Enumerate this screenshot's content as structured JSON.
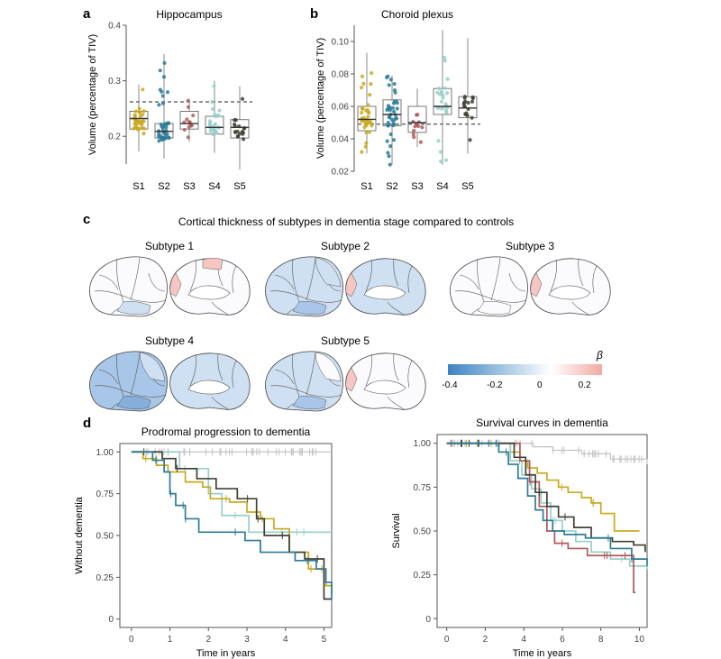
{
  "panels": {
    "a": {
      "letter": "a"
    },
    "b": {
      "letter": "b"
    },
    "c": {
      "letter": "c",
      "title": "Cortical thickness of subtypes in dementia stage compared to controls",
      "subtypes": [
        "Subtype 1",
        "Subtype 2",
        "Subtype 3",
        "Subtype 4",
        "Subtype 5"
      ],
      "colorbar": {
        "label": "β",
        "ticks": [
          "-0.4",
          "-0.2",
          "0",
          "0.2"
        ],
        "colors": [
          "#3c84c2",
          "#ffffff",
          "#f2a9a5"
        ]
      }
    },
    "d": {
      "letter": "d"
    }
  },
  "colors": {
    "S1": "#c9a920",
    "S2": "#2c7b98",
    "S3": "#b05a5a",
    "S4": "#99cfcb",
    "S5": "#404037",
    "controls": "#c4c4c4"
  },
  "chart_data": [
    {
      "id": "hippocampus",
      "type": "boxplot",
      "title": "Hippocampus",
      "ylabel": "Volume (percentage of TIV)",
      "categories": [
        "S1",
        "S2",
        "S3",
        "S4",
        "S5"
      ],
      "yticks": [
        "0.2",
        "0.3",
        "0.4"
      ],
      "ylim": [
        0.15,
        0.4
      ],
      "reference_line": 0.262,
      "boxes": [
        {
          "q1": 0.213,
          "median": 0.232,
          "q3": 0.245,
          "min": 0.173,
          "max": 0.293
        },
        {
          "q1": 0.197,
          "median": 0.209,
          "q3": 0.223,
          "min": 0.16,
          "max": 0.348
        },
        {
          "q1": 0.213,
          "median": 0.223,
          "q3": 0.245,
          "min": 0.19,
          "max": 0.268
        },
        {
          "q1": 0.204,
          "median": 0.216,
          "q3": 0.236,
          "min": 0.17,
          "max": 0.3
        },
        {
          "q1": 0.197,
          "median": 0.216,
          "q3": 0.23,
          "min": 0.14,
          "max": 0.29
        }
      ]
    },
    {
      "id": "choroid",
      "type": "boxplot",
      "title": "Choroid plexus",
      "ylabel": "Volume (percentage of TIV)",
      "categories": [
        "S1",
        "S2",
        "S3",
        "S4",
        "S5"
      ],
      "yticks": [
        "0.02",
        "0.04",
        "0.06",
        "0.08",
        "0.10"
      ],
      "ylim": [
        0.02,
        0.11
      ],
      "reference_line": 0.049,
      "boxes": [
        {
          "q1": 0.045,
          "median": 0.052,
          "q3": 0.06,
          "min": 0.031,
          "max": 0.093
        },
        {
          "q1": 0.048,
          "median": 0.055,
          "q3": 0.064,
          "min": 0.024,
          "max": 0.079
        },
        {
          "q1": 0.044,
          "median": 0.05,
          "q3": 0.06,
          "min": 0.035,
          "max": 0.071
        },
        {
          "q1": 0.055,
          "median": 0.06,
          "q3": 0.071,
          "min": 0.024,
          "max": 0.107
        },
        {
          "q1": 0.053,
          "median": 0.059,
          "q3": 0.066,
          "min": 0.031,
          "max": 0.102
        }
      ]
    },
    {
      "id": "prodromal",
      "type": "line",
      "title": "Prodromal progression to dementia",
      "xlabel": "Time in years",
      "ylabel": "Without dementia",
      "xticks": [
        "0",
        "1",
        "2",
        "3",
        "4",
        "5"
      ],
      "yticks": [
        "0",
        "0.25",
        "0.50",
        "0.75",
        "1.00"
      ],
      "xlim": [
        -0.3,
        5.2
      ],
      "ylim": [
        -0.05,
        1.05
      ],
      "series": [
        {
          "key": "controls",
          "points": [
            [
              0,
              1
            ],
            [
              5.2,
              1
            ]
          ]
        },
        {
          "key": "S4",
          "points": [
            [
              0,
              1
            ],
            [
              1.1,
              1
            ],
            [
              1.25,
              0.9
            ],
            [
              2,
              0.75
            ],
            [
              2.35,
              0.62
            ],
            [
              3.05,
              0.52
            ],
            [
              5.2,
              0.52
            ]
          ]
        },
        {
          "key": "S1",
          "points": [
            [
              0,
              1
            ],
            [
              0.3,
              0.96
            ],
            [
              0.65,
              0.92
            ],
            [
              0.95,
              0.88
            ],
            [
              1.4,
              0.82
            ],
            [
              1.85,
              0.79
            ],
            [
              2.05,
              0.72
            ],
            [
              2.55,
              0.7
            ],
            [
              3,
              0.64
            ],
            [
              3.35,
              0.6
            ],
            [
              3.7,
              0.54
            ],
            [
              4.1,
              0.4
            ],
            [
              4.6,
              0.3
            ],
            [
              5.05,
              0.2
            ],
            [
              5.2,
              0.15
            ]
          ]
        },
        {
          "key": "S5",
          "points": [
            [
              0,
              1
            ],
            [
              0.8,
              0.96
            ],
            [
              1.15,
              0.9
            ],
            [
              1.7,
              0.84
            ],
            [
              2.2,
              0.78
            ],
            [
              2.75,
              0.72
            ],
            [
              3.25,
              0.6
            ],
            [
              3.45,
              0.5
            ],
            [
              4.1,
              0.4
            ],
            [
              4.5,
              0.36
            ],
            [
              5,
              0.12
            ],
            [
              5.2,
              0.12
            ]
          ]
        },
        {
          "key": "S2",
          "points": [
            [
              0,
              1
            ],
            [
              0.55,
              0.95
            ],
            [
              0.85,
              0.88
            ],
            [
              1,
              0.75
            ],
            [
              1.15,
              0.68
            ],
            [
              1.4,
              0.6
            ],
            [
              1.75,
              0.52
            ],
            [
              2.95,
              0.47
            ],
            [
              3.35,
              0.4
            ],
            [
              4.25,
              0.35
            ],
            [
              4.8,
              0.3
            ],
            [
              5.05,
              0.22
            ],
            [
              5.2,
              0.12
            ]
          ]
        }
      ]
    },
    {
      "id": "survival",
      "type": "line",
      "title": "Survival curves in dementia",
      "xlabel": "Time in years",
      "ylabel": "Survival",
      "xticks": [
        "0",
        "2",
        "4",
        "6",
        "8",
        "10"
      ],
      "yticks": [
        "0",
        "0.25",
        "0.50",
        "0.75",
        "1.00"
      ],
      "xlim": [
        -0.5,
        10.4
      ],
      "ylim": [
        -0.05,
        1.05
      ],
      "series": [
        {
          "key": "controls",
          "points": [
            [
              0,
              1
            ],
            [
              3.5,
              1
            ],
            [
              4.5,
              0.98
            ],
            [
              5.5,
              0.96
            ],
            [
              7,
              0.94
            ],
            [
              8.5,
              0.91
            ],
            [
              10.4,
              0.88
            ]
          ]
        },
        {
          "key": "S1",
          "points": [
            [
              0,
              1
            ],
            [
              2.5,
              1
            ],
            [
              3.3,
              0.95
            ],
            [
              3.8,
              0.9
            ],
            [
              4.2,
              0.86
            ],
            [
              4.7,
              0.83
            ],
            [
              5.2,
              0.79
            ],
            [
              5.8,
              0.75
            ],
            [
              6.3,
              0.72
            ],
            [
              7,
              0.69
            ],
            [
              7.5,
              0.66
            ],
            [
              8,
              0.6
            ],
            [
              8.7,
              0.5
            ],
            [
              10,
              0.5
            ]
          ]
        },
        {
          "key": "S4",
          "points": [
            [
              0,
              1
            ],
            [
              2.6,
              1
            ],
            [
              3.3,
              0.9
            ],
            [
              3.9,
              0.82
            ],
            [
              4.4,
              0.74
            ],
            [
              4.9,
              0.66
            ],
            [
              5.4,
              0.56
            ],
            [
              6,
              0.5
            ],
            [
              6.7,
              0.44
            ],
            [
              7.5,
              0.38
            ],
            [
              8.5,
              0.34
            ],
            [
              9.5,
              0.3
            ],
            [
              10.4,
              0.28
            ]
          ]
        },
        {
          "key": "S3",
          "points": [
            [
              0,
              1
            ],
            [
              3.3,
              1
            ],
            [
              3.8,
              0.9
            ],
            [
              4.3,
              0.78
            ],
            [
              4.8,
              0.64
            ],
            [
              5.2,
              0.5
            ],
            [
              5.6,
              0.43
            ],
            [
              6.3,
              0.4
            ],
            [
              7.3,
              0.36
            ],
            [
              8.5,
              0.36
            ],
            [
              9.6,
              0.36
            ],
            [
              9.7,
              0.15
            ],
            [
              9.8,
              0.15
            ]
          ]
        },
        {
          "key": "S5",
          "points": [
            [
              0,
              1
            ],
            [
              2.8,
              1
            ],
            [
              3.5,
              0.92
            ],
            [
              4.1,
              0.82
            ],
            [
              4.6,
              0.72
            ],
            [
              5.2,
              0.64
            ],
            [
              5.8,
              0.58
            ],
            [
              6.6,
              0.52
            ],
            [
              7.5,
              0.46
            ],
            [
              8.6,
              0.44
            ],
            [
              9.7,
              0.42
            ],
            [
              10.3,
              0.38
            ]
          ]
        },
        {
          "key": "S2",
          "points": [
            [
              0,
              1
            ],
            [
              2.2,
              1
            ],
            [
              2.7,
              0.95
            ],
            [
              3.2,
              0.88
            ],
            [
              3.7,
              0.8
            ],
            [
              4.2,
              0.7
            ],
            [
              4.6,
              0.62
            ],
            [
              5,
              0.56
            ],
            [
              5.5,
              0.5
            ],
            [
              6.1,
              0.48
            ],
            [
              7.2,
              0.46
            ],
            [
              8.5,
              0.4
            ],
            [
              9.6,
              0.34
            ],
            [
              10.4,
              0.3
            ]
          ]
        }
      ]
    }
  ]
}
